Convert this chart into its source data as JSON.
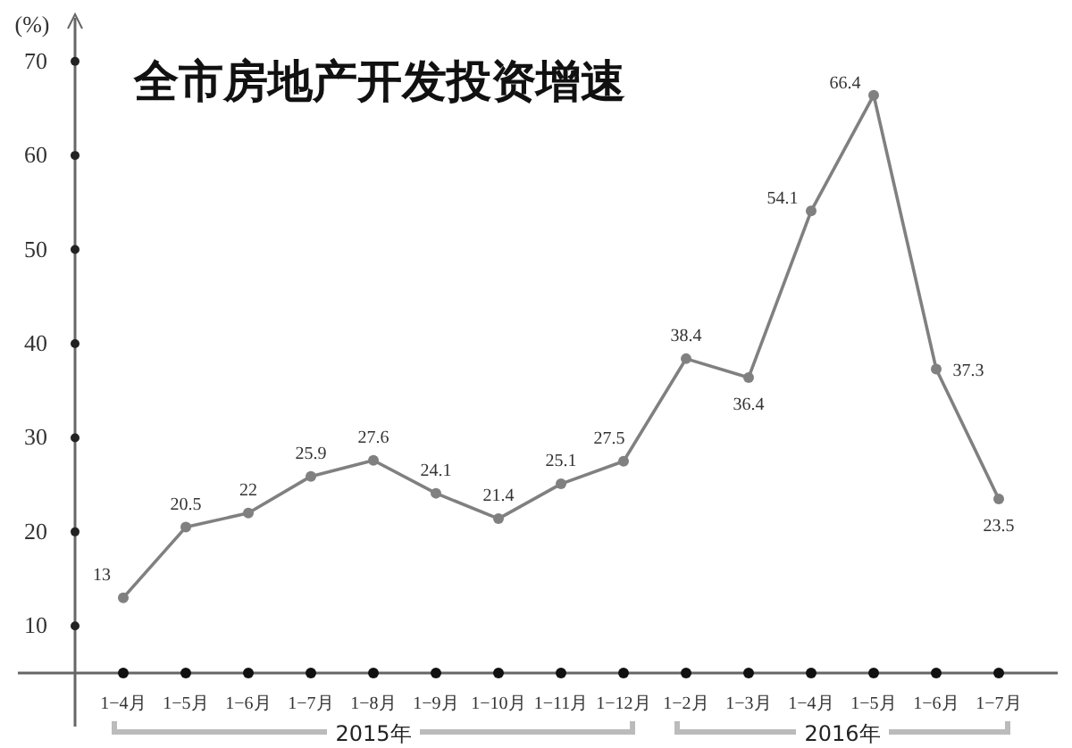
{
  "chart_data": {
    "type": "line",
    "title": "全市房地产开发投资增速",
    "ylabel": "(%)",
    "categories": [
      "1−4月",
      "1−5月",
      "1−6月",
      "1−7月",
      "1−8月",
      "1−9月",
      "1−10月",
      "1−11月",
      "1−12月",
      "1−2月",
      "1−3月",
      "1−4月",
      "1−5月",
      "1−6月",
      "1−7月"
    ],
    "series": [
      {
        "color": "#808080",
        "values": [
          13,
          20.5,
          22,
          25.9,
          27.6,
          24.1,
          21.4,
          25.1,
          27.5,
          38.4,
          36.4,
          54.1,
          66.4,
          37.3,
          23.5
        ]
      }
    ],
    "ylim": [
      5,
      75
    ],
    "yticks": [
      10,
      20,
      30,
      40,
      50,
      60,
      70
    ],
    "marker": "circle",
    "data_labels": true,
    "grid": false,
    "annotations": [
      "2015年",
      "2016年"
    ]
  }
}
